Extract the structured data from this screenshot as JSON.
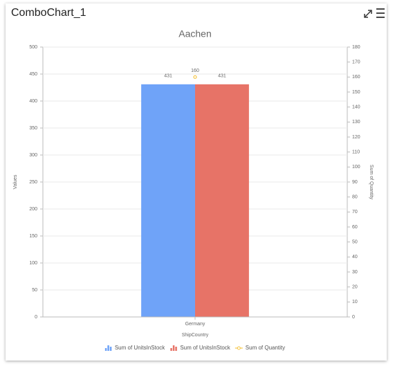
{
  "widget_title": "ComboChart_1",
  "chart_data": {
    "type": "combo",
    "title": "Aachen",
    "categories": [
      "Germany"
    ],
    "x_label": "ShipCountry",
    "y_label": "Values",
    "y2_label": "Sum of Quantity",
    "series": [
      {
        "name": "Sum of UnitsInStock",
        "type": "bar",
        "color": "#6fa3f8",
        "values": [
          431
        ]
      },
      {
        "name": "Sum of UnitsInStock",
        "type": "bar",
        "color": "#e77367",
        "values": [
          431
        ]
      },
      {
        "name": "Sum of Quantity",
        "type": "line",
        "color": "#f5c542",
        "axis": "y2",
        "values": [
          160
        ]
      }
    ],
    "ylim": [
      0,
      500
    ],
    "yticks": [
      0,
      50,
      100,
      150,
      200,
      250,
      300,
      350,
      400,
      450,
      500
    ],
    "y2lim": [
      0,
      180
    ],
    "y2ticks": [
      0,
      10,
      20,
      30,
      40,
      50,
      60,
      70,
      80,
      90,
      100,
      110,
      120,
      130,
      140,
      150,
      160,
      170,
      180
    ],
    "grid": true,
    "legend": "bottom"
  }
}
